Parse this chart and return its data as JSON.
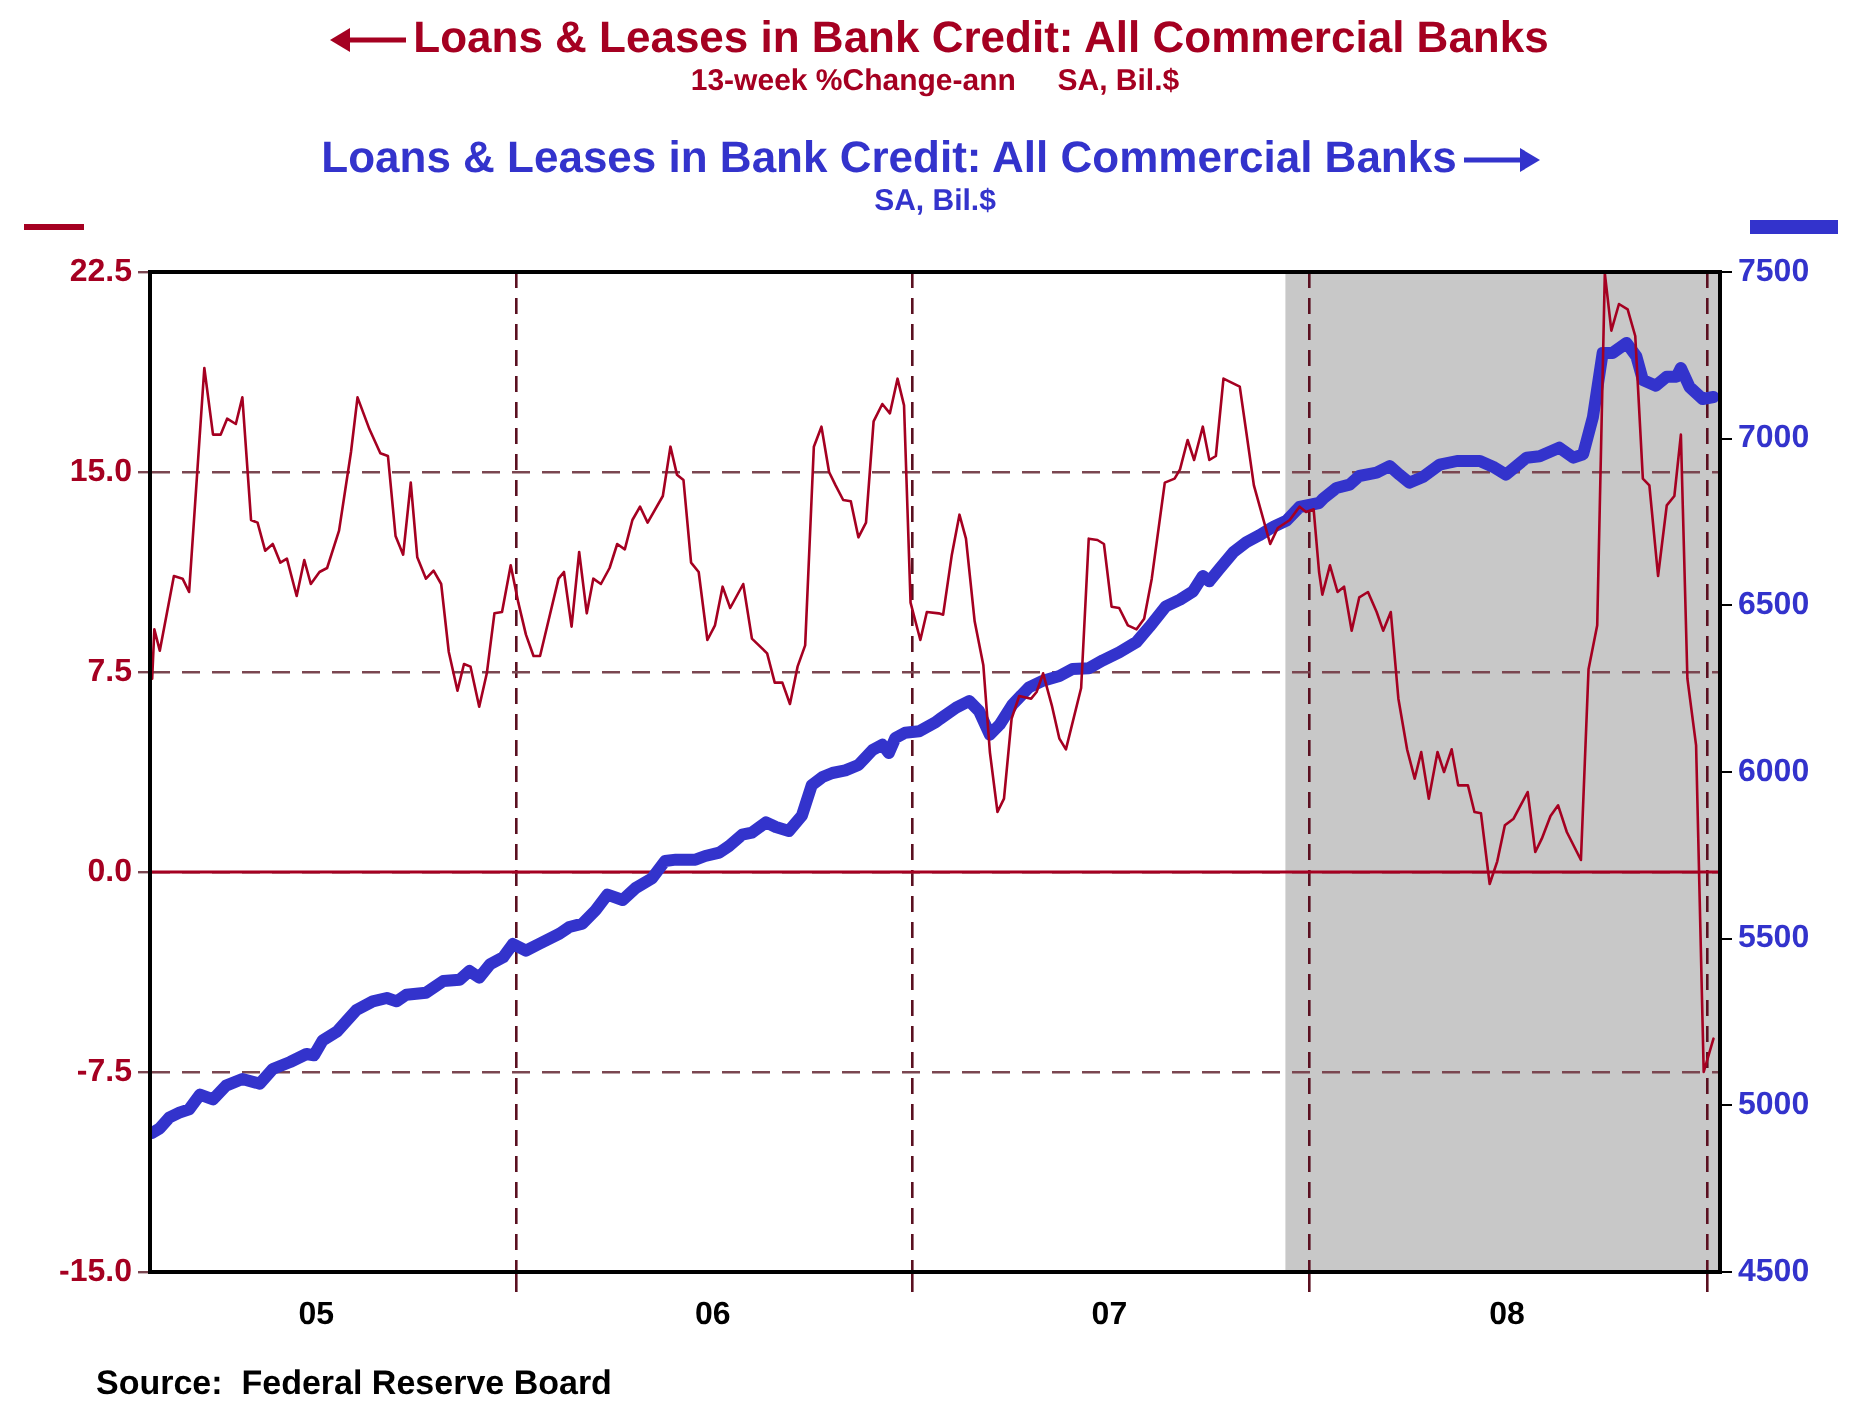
{
  "chart_data": {
    "type": "line",
    "annotations": [
      "13-week %Change-ann     SA, Bil.$",
      "SA, Bil.$",
      "Source:  Federal Reserve Board"
    ],
    "series": [
      {
        "name": "Loans & Leases in Bank Credit: All Commercial Banks",
        "color": "#a50021",
        "x": [
          "2005-01-31",
          "2005-02-02",
          "2005-02-07",
          "2005-02-20",
          "2005-02-28",
          "2005-03-06",
          "2005-03-20",
          "2005-03-28",
          "2005-04-04",
          "2005-04-10",
          "2005-04-18",
          "2005-04-24",
          "2005-05-02",
          "2005-05-08",
          "2005-05-15",
          "2005-05-22",
          "2005-05-29",
          "2005-06-04",
          "2005-06-13",
          "2005-06-20",
          "2005-06-26",
          "2005-07-04",
          "2005-07-11",
          "2005-07-22",
          "2005-08-02",
          "2005-08-08",
          "2005-08-19",
          "2005-08-29",
          "2005-09-05",
          "2005-09-12",
          "2005-09-19",
          "2005-09-26",
          "2005-10-02",
          "2005-10-10",
          "2005-10-17",
          "2005-10-24",
          "2005-10-31",
          "2005-11-08",
          "2005-11-14",
          "2005-11-20",
          "2005-11-28",
          "2005-12-05",
          "2005-12-12",
          "2005-12-19",
          "2005-12-27",
          "2006-01-03",
          "2006-01-10",
          "2006-01-17",
          "2006-01-23",
          "2006-02-09",
          "2006-02-14",
          "2006-02-21",
          "2006-02-28",
          "2006-03-07",
          "2006-03-13",
          "2006-03-20",
          "2006-03-28",
          "2006-04-04",
          "2006-04-11",
          "2006-04-18",
          "2006-04-25",
          "2006-05-02",
          "2006-05-16",
          "2006-05-23",
          "2006-05-29",
          "2006-06-04",
          "2006-06-11",
          "2006-06-18",
          "2006-06-26",
          "2006-07-03",
          "2006-07-10",
          "2006-07-17",
          "2006-07-29",
          "2006-08-06",
          "2006-08-20",
          "2006-08-27",
          "2006-09-03",
          "2006-09-10",
          "2006-09-17",
          "2006-09-24",
          "2006-10-02",
          "2006-10-09",
          "2006-10-16",
          "2006-10-22",
          "2006-10-29",
          "2006-11-05",
          "2006-11-12",
          "2006-11-19",
          "2006-11-26",
          "2006-12-04",
          "2006-12-11",
          "2006-12-18",
          "2006-12-24",
          "2006-12-30",
          "2007-01-08",
          "2007-01-14",
          "2007-01-25",
          "2007-01-29",
          "2007-02-06",
          "2007-02-13",
          "2007-02-19",
          "2007-02-27",
          "2007-03-07",
          "2007-03-13",
          "2007-03-20",
          "2007-03-26",
          "2007-04-02",
          "2007-04-09",
          "2007-04-20",
          "2007-04-25",
          "2007-05-01",
          "2007-05-09",
          "2007-05-16",
          "2007-05-22",
          "2007-06-05",
          "2007-06-12",
          "2007-06-20",
          "2007-06-26",
          "2007-07-03",
          "2007-07-10",
          "2007-07-18",
          "2007-07-26",
          "2007-08-02",
          "2007-08-09",
          "2007-08-21",
          "2007-08-30",
          "2007-09-04",
          "2007-09-11",
          "2007-09-17",
          "2007-09-25",
          "2007-10-01",
          "2007-10-07",
          "2007-10-14",
          "2007-10-29",
          "2007-11-04",
          "2007-11-11",
          "2007-11-26",
          "2007-12-03",
          "2007-12-14",
          "2007-12-23",
          "2007-12-29",
          "2008-01-05",
          "2008-01-10",
          "2008-01-13",
          "2008-01-20",
          "2008-01-27",
          "2008-02-02",
          "2008-02-09",
          "2008-02-16",
          "2008-02-24",
          "2008-03-03",
          "2008-03-09",
          "2008-03-16",
          "2008-03-23",
          "2008-03-31",
          "2008-04-07",
          "2008-04-13",
          "2008-04-20",
          "2008-04-28",
          "2008-05-04",
          "2008-05-11",
          "2008-05-17",
          "2008-05-26",
          "2008-06-01",
          "2008-06-07",
          "2008-06-15",
          "2008-06-22",
          "2008-06-29",
          "2008-07-07",
          "2008-07-20",
          "2008-07-27",
          "2008-08-02",
          "2008-08-10",
          "2008-08-17",
          "2008-08-25",
          "2008-09-07",
          "2008-09-14",
          "2008-09-22",
          "2008-09-29",
          "2008-10-05",
          "2008-10-12",
          "2008-10-20",
          "2008-10-27",
          "2008-11-03",
          "2008-11-09",
          "2008-11-17",
          "2008-11-25",
          "2008-12-02",
          "2008-12-08",
          "2008-12-14",
          "2008-12-22",
          "2008-12-29",
          "2009-01-07"
        ],
        "values": [
          7.25,
          9.1,
          8.3,
          11.1,
          11.0,
          10.5,
          18.9,
          16.4,
          16.4,
          17.0,
          16.8,
          17.8,
          13.2,
          13.1,
          12.05,
          12.3,
          11.6,
          11.75,
          10.35,
          11.7,
          10.8,
          11.25,
          11.4,
          12.8,
          15.75,
          17.8,
          16.6,
          15.7,
          15.6,
          12.6,
          11.9,
          14.6,
          11.8,
          11.0,
          11.3,
          10.8,
          8.25,
          6.8,
          7.8,
          7.7,
          6.2,
          7.45,
          9.7,
          9.75,
          11.5,
          10.1,
          8.9,
          8.1,
          8.1,
          11.0,
          11.25,
          9.2,
          12.0,
          9.7,
          11.0,
          10.8,
          11.4,
          12.3,
          12.1,
          13.2,
          13.7,
          13.1,
          14.1,
          15.95,
          14.9,
          14.7,
          11.6,
          11.25,
          8.7,
          9.25,
          10.7,
          9.9,
          10.8,
          8.75,
          8.2,
          7.1,
          7.1,
          6.3,
          7.7,
          8.5,
          15.95,
          16.7,
          15.0,
          14.5,
          13.95,
          13.9,
          12.55,
          13.1,
          16.9,
          17.55,
          17.2,
          18.5,
          17.5,
          10.1,
          8.7,
          9.75,
          9.7,
          9.65,
          11.9,
          13.4,
          12.5,
          9.4,
          7.75,
          4.5,
          2.25,
          2.75,
          5.75,
          6.6,
          6.5,
          6.75,
          7.45,
          6.25,
          5.0,
          4.6,
          6.9,
          12.5,
          12.45,
          12.3,
          9.95,
          9.9,
          9.25,
          9.1,
          9.5,
          11.0,
          14.6,
          14.75,
          15.1,
          16.2,
          15.45,
          16.7,
          15.45,
          15.6,
          18.5,
          18.2,
          16.5,
          14.5,
          12.3,
          12.9,
          13.2,
          13.7,
          13.5,
          13.6,
          11.25,
          10.4,
          11.5,
          10.5,
          10.7,
          9.05,
          10.3,
          10.5,
          9.75,
          9.05,
          9.75,
          6.5,
          4.6,
          3.5,
          4.5,
          2.75,
          4.5,
          3.75,
          4.6,
          3.25,
          3.25,
          2.25,
          2.2,
          -0.45,
          0.4,
          1.75,
          2.0,
          3.0,
          0.75,
          1.25,
          2.1,
          2.5,
          1.5,
          0.45,
          7.6,
          9.25,
          22.45,
          20.3,
          21.3,
          21.1,
          20.1,
          14.75,
          14.5,
          11.1,
          13.75,
          14.1,
          16.4,
          7.25,
          4.75,
          -7.5,
          -6.25
        ]
      },
      {
        "name": "Loans & Leases in Bank Credit: All Commercial Banks",
        "color": "#3333cc",
        "axis": "y2",
        "x": [
          "2005-01-31",
          "2005-02-07",
          "2005-02-16",
          "2005-02-25",
          "2005-03-06",
          "2005-03-16",
          "2005-03-28",
          "2005-04-09",
          "2005-04-24",
          "2005-05-10",
          "2005-05-22",
          "2005-06-07",
          "2005-06-22",
          "2005-06-29",
          "2005-07-07",
          "2005-07-20",
          "2005-08-07",
          "2005-08-22",
          "2005-09-04",
          "2005-09-13",
          "2005-09-22",
          "2005-10-10",
          "2005-10-26",
          "2005-11-10",
          "2005-11-19",
          "2005-11-28",
          "2005-12-08",
          "2005-12-20",
          "2005-12-29",
          "2006-01-10",
          "2006-01-22",
          "2006-02-10",
          "2006-02-19",
          "2006-03-03",
          "2006-03-15",
          "2006-03-26",
          "2006-04-09",
          "2006-04-21",
          "2006-05-06",
          "2006-05-18",
          "2006-05-28",
          "2006-06-15",
          "2006-06-24",
          "2006-07-07",
          "2006-07-16",
          "2006-07-28",
          "2006-08-06",
          "2006-08-19",
          "2006-08-28",
          "2006-09-09",
          "2006-09-21",
          "2006-09-30",
          "2006-10-10",
          "2006-10-19",
          "2006-10-31",
          "2006-11-12",
          "2006-11-25",
          "2006-12-04",
          "2006-12-10",
          "2006-12-16",
          "2006-12-25",
          "2007-01-07",
          "2007-01-22",
          "2007-01-26",
          "2007-02-10",
          "2007-02-22",
          "2007-03-03",
          "2007-03-13",
          "2007-03-22",
          "2007-04-03",
          "2007-04-18",
          "2007-05-01",
          "2007-05-16",
          "2007-05-28",
          "2007-06-12",
          "2007-06-25",
          "2007-07-10",
          "2007-07-26",
          "2007-08-07",
          "2007-08-22",
          "2007-09-04",
          "2007-09-16",
          "2007-09-25",
          "2007-10-01",
          "2007-10-10",
          "2007-10-23",
          "2007-11-04",
          "2007-11-16",
          "2007-11-28",
          "2007-12-11",
          "2007-12-23",
          "2008-01-10",
          "2008-01-14",
          "2008-01-26",
          "2008-02-07",
          "2008-02-16",
          "2008-03-03",
          "2008-03-15",
          "2008-03-24",
          "2008-04-02",
          "2008-04-15",
          "2008-04-30",
          "2008-05-16",
          "2008-06-06",
          "2008-06-18",
          "2008-06-30",
          "2008-07-19",
          "2008-07-31",
          "2008-08-18",
          "2008-08-31",
          "2008-09-09",
          "2008-09-18",
          "2008-09-27",
          "2008-10-06",
          "2008-10-19",
          "2008-10-28",
          "2008-11-03",
          "2008-11-15",
          "2008-11-25",
          "2008-12-04",
          "2008-12-08",
          "2008-12-16",
          "2008-12-28",
          "2009-01-07"
        ],
        "values": [
          4917,
          4931,
          4964,
          4978,
          4988,
          5032,
          5018,
          5059,
          5079,
          5065,
          5109,
          5130,
          5154,
          5150,
          5195,
          5221,
          5286,
          5312,
          5322,
          5312,
          5332,
          5338,
          5373,
          5377,
          5403,
          5383,
          5423,
          5444,
          5484,
          5464,
          5484,
          5515,
          5535,
          5545,
          5585,
          5632,
          5616,
          5652,
          5681,
          5733,
          5737,
          5737,
          5748,
          5758,
          5778,
          5812,
          5818,
          5849,
          5835,
          5823,
          5869,
          5960,
          5985,
          5997,
          6005,
          6021,
          6066,
          6082,
          6057,
          6102,
          6118,
          6122,
          6149,
          6159,
          6193,
          6213,
          6183,
          6112,
          6142,
          6203,
          6254,
          6274,
          6288,
          6309,
          6311,
          6335,
          6359,
          6390,
          6436,
          6497,
          6517,
          6542,
          6588,
          6572,
          6608,
          6659,
          6689,
          6710,
          6734,
          6754,
          6795,
          6807,
          6821,
          6852,
          6862,
          6888,
          6898,
          6918,
          6892,
          6868,
          6886,
          6922,
          6933,
          6933,
          6916,
          6892,
          6943,
          6947,
          6973,
          6943,
          6953,
          7064,
          7257,
          7257,
          7287,
          7247,
          7176,
          7159,
          7186,
          7186,
          7212,
          7155,
          7119,
          7125
        ]
      }
    ],
    "xlim": [
      "2005-01-29",
      "2009-01-13"
    ],
    "xticks": [
      {
        "value": "2005-07-01",
        "label": "05"
      },
      {
        "value": "2006-01-01",
        "label": null
      },
      {
        "value": "2006-07-01",
        "label": "06"
      },
      {
        "value": "2007-01-01",
        "label": null
      },
      {
        "value": "2007-07-01",
        "label": "07"
      },
      {
        "value": "2008-01-01",
        "label": null
      },
      {
        "value": "2008-07-01",
        "label": "08"
      },
      {
        "value": "2009-01-01",
        "label": null
      }
    ],
    "ylim": [
      -15,
      22.5
    ],
    "yticks": [
      {
        "value": -15,
        "label": "-15.0"
      },
      -7.5,
      {
        "value": 0,
        "label": "0.0"
      },
      7.5,
      {
        "value": 15,
        "label": "15.0"
      },
      22.5
    ],
    "y2lim": [
      4500,
      7500
    ],
    "y2ticks": [
      4500,
      5000,
      5500,
      6000,
      6500,
      7000,
      7500
    ],
    "ref_lines": [
      {
        "axis": "y",
        "value": 0,
        "color": "#a50021",
        "line_style": "solid"
      }
    ],
    "bands": [
      {
        "axis": "x",
        "from": "2007-12-10",
        "to": "2009-01-13",
        "color": "#c8c8c8"
      }
    ],
    "grid": true,
    "legend": "top",
    "line_style": "solid",
    "marker": "none"
  }
}
